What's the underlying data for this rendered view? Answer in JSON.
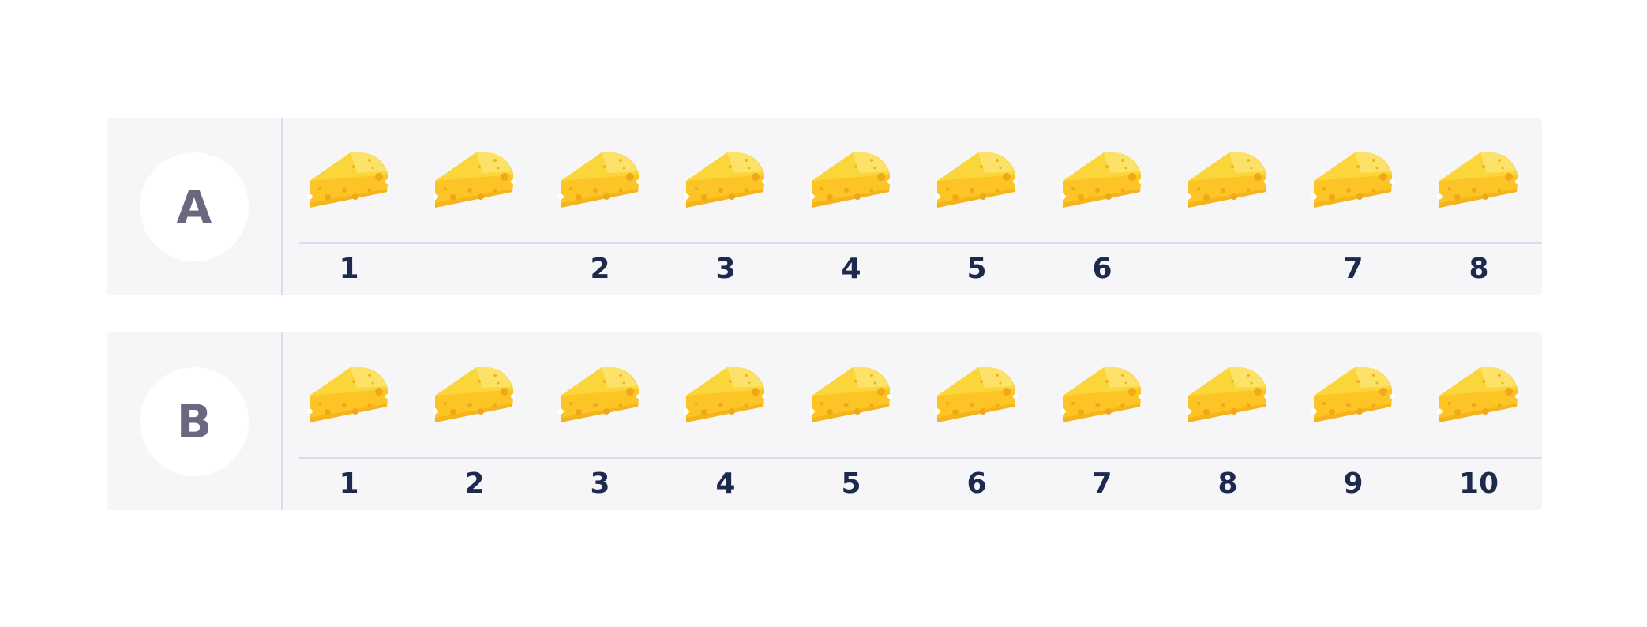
{
  "rows": [
    {
      "label": "A",
      "cheese_count": 10,
      "numbers": [
        "1",
        "",
        "2",
        "3",
        "4",
        "5",
        "6",
        "",
        "7",
        "8"
      ]
    },
    {
      "label": "B",
      "cheese_count": 10,
      "numbers": [
        "1",
        "2",
        "3",
        "4",
        "5",
        "6",
        "7",
        "8",
        "9",
        "10"
      ]
    }
  ],
  "icon": "cheese-wedge-icon",
  "colors": {
    "cheese_main": "#fcc525",
    "cheese_top": "#fbd63a",
    "cheese_holes": "#f0a818",
    "panel_bg": "#f6f6f9",
    "label_text": "#6a6880",
    "number_text": "#1d2a4e"
  }
}
